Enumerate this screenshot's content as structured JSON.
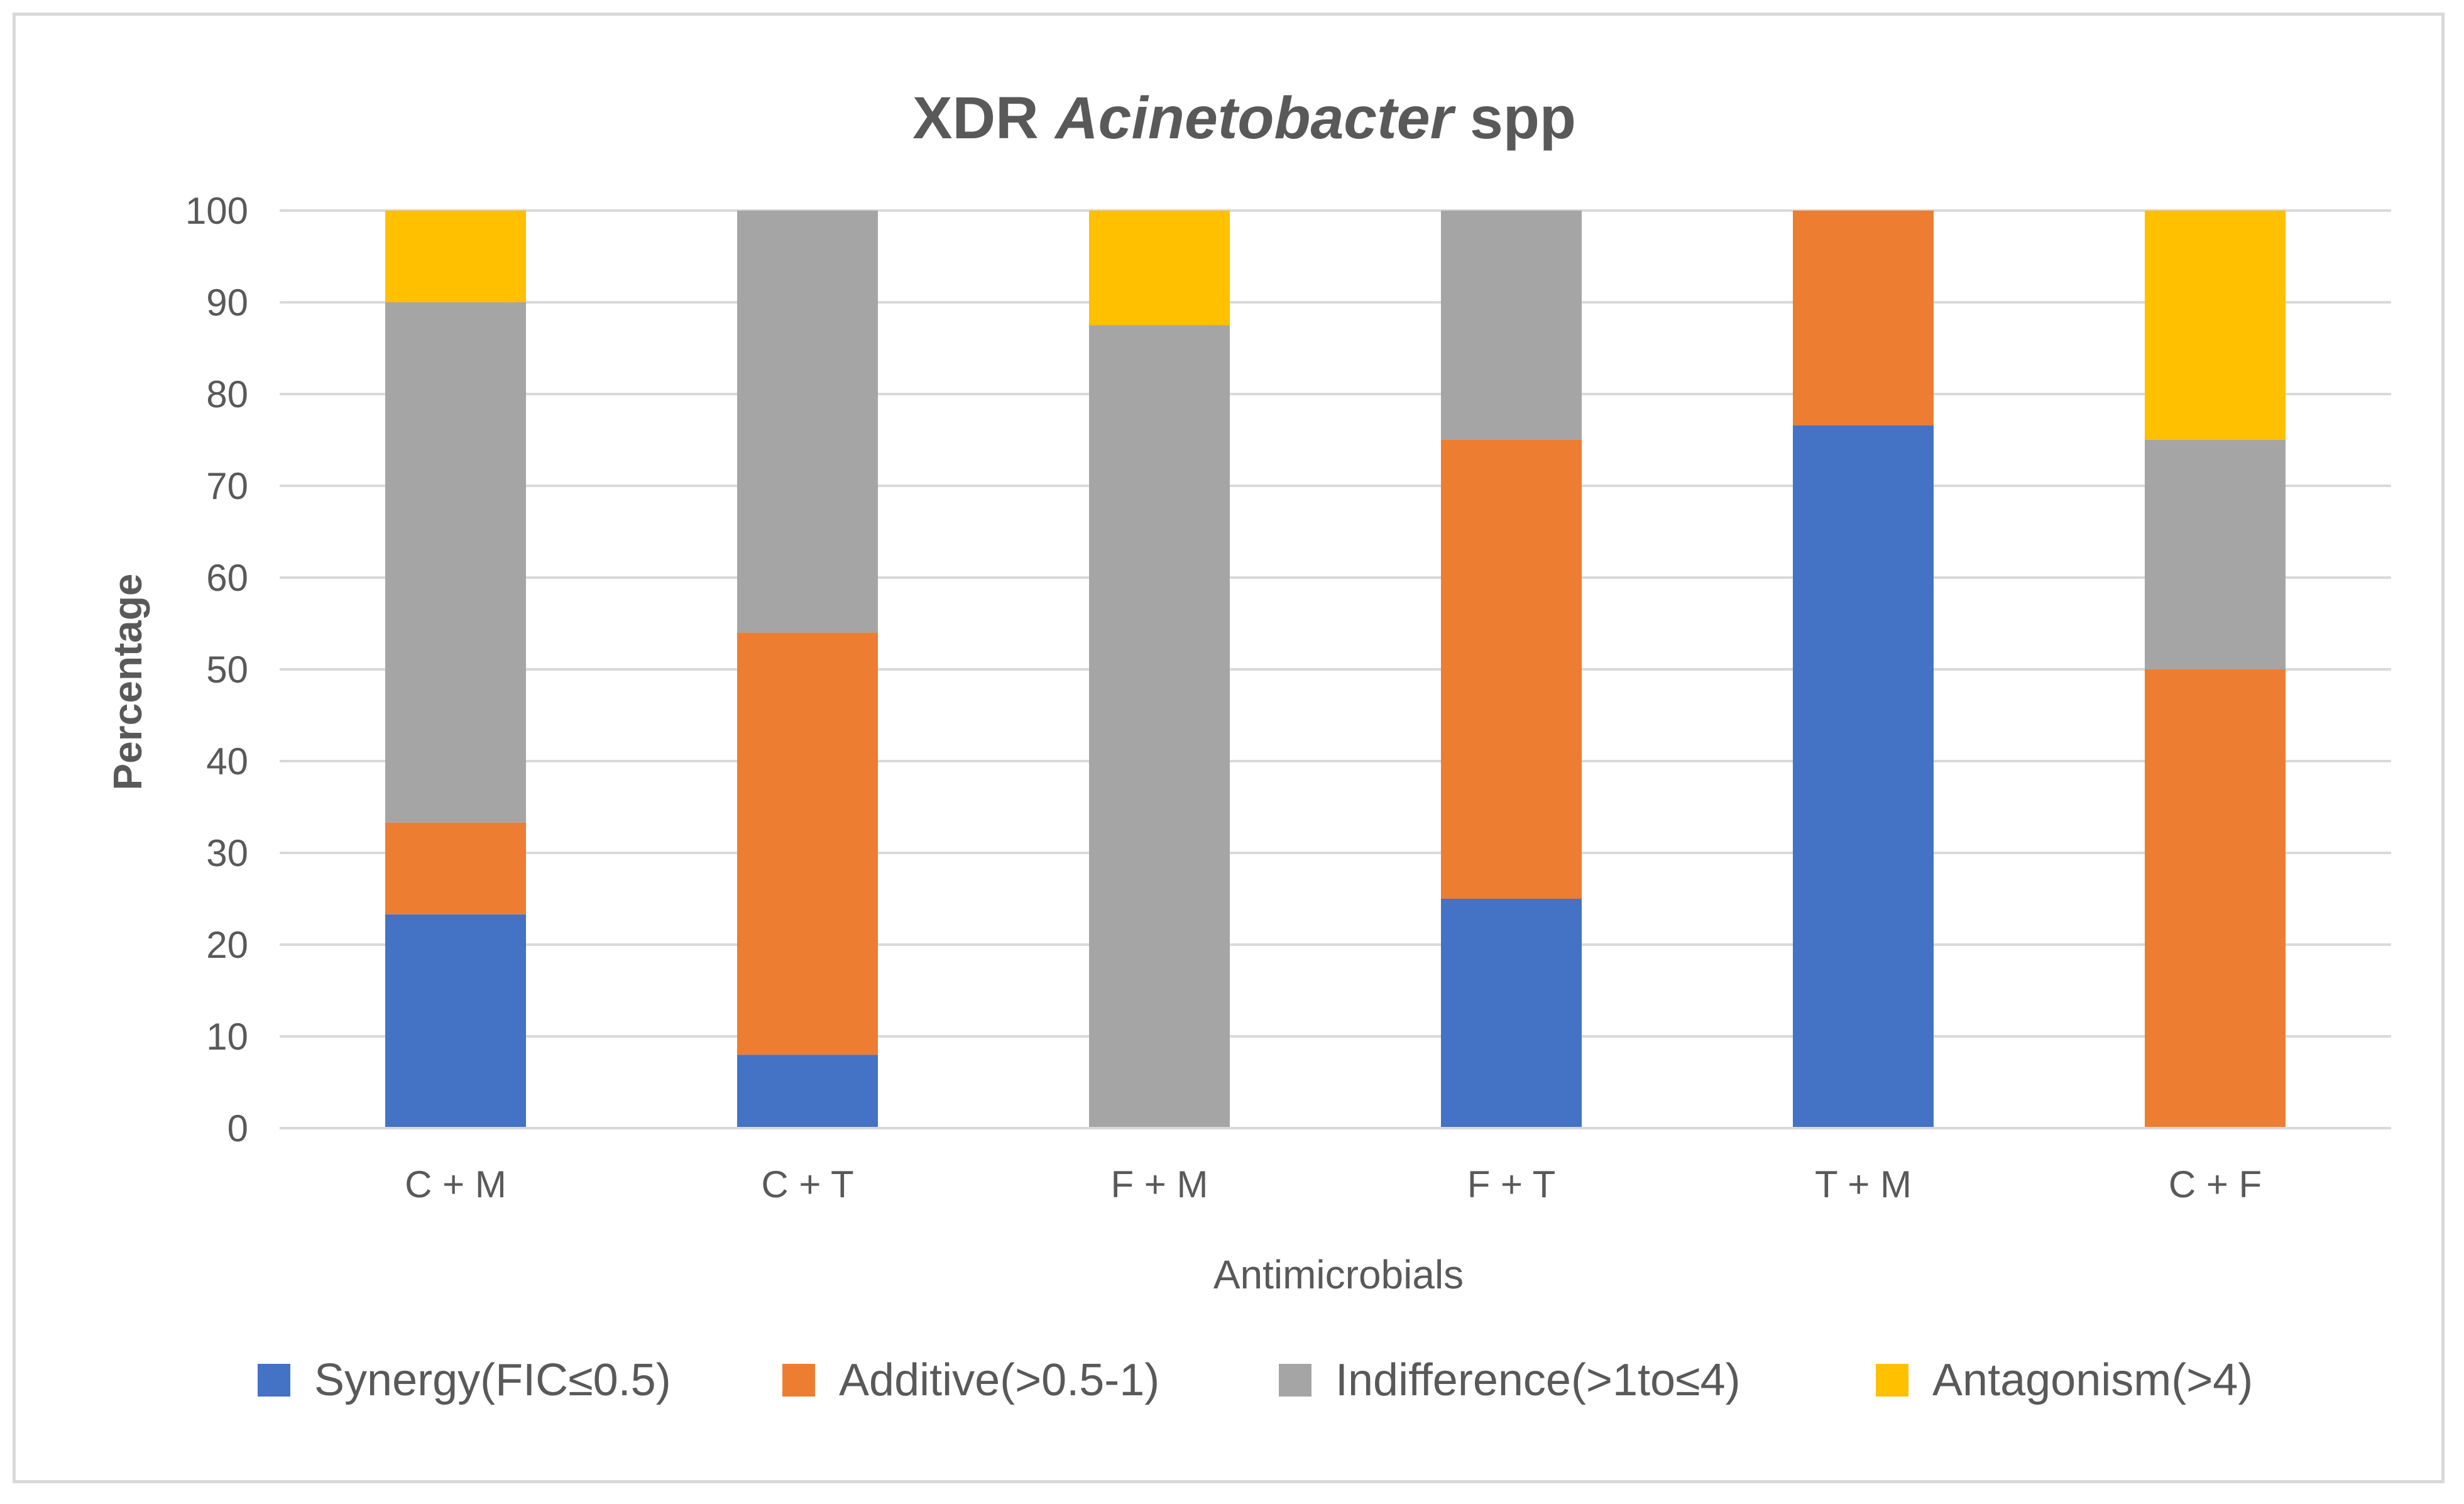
{
  "chart_data": {
    "type": "bar",
    "stacked": true,
    "title": {
      "prefix": "XDR ",
      "italic": "Acinetobacter",
      "suffix": " spp"
    },
    "xlabel": "Antimicrobials",
    "ylabel": "Percentage",
    "ylim": [
      0,
      100
    ],
    "yticks": [
      0,
      10,
      20,
      30,
      40,
      50,
      60,
      70,
      80,
      90,
      100
    ],
    "grid": true,
    "legend_position": "bottom",
    "categories": [
      "C + M",
      "C + T",
      "F + M",
      "F + T",
      "T + M",
      "C + F"
    ],
    "series": [
      {
        "name": "Synergy(FIC≤0.5)",
        "color": "#4472c4",
        "values": [
          23.3,
          8,
          0,
          25,
          76.6,
          0
        ]
      },
      {
        "name": "Additive(>0.5-1)",
        "color": "#ed7d31",
        "values": [
          10,
          46,
          0,
          50,
          23.4,
          50
        ]
      },
      {
        "name": "Indifference(>1to≤4)",
        "color": "#a5a5a5",
        "values": [
          56.7,
          46,
          87.5,
          25,
          0,
          25
        ]
      },
      {
        "name": "Antagonism(>4)",
        "color": "#ffc000",
        "values": [
          10,
          0,
          12.5,
          0,
          0,
          25
        ]
      }
    ]
  }
}
